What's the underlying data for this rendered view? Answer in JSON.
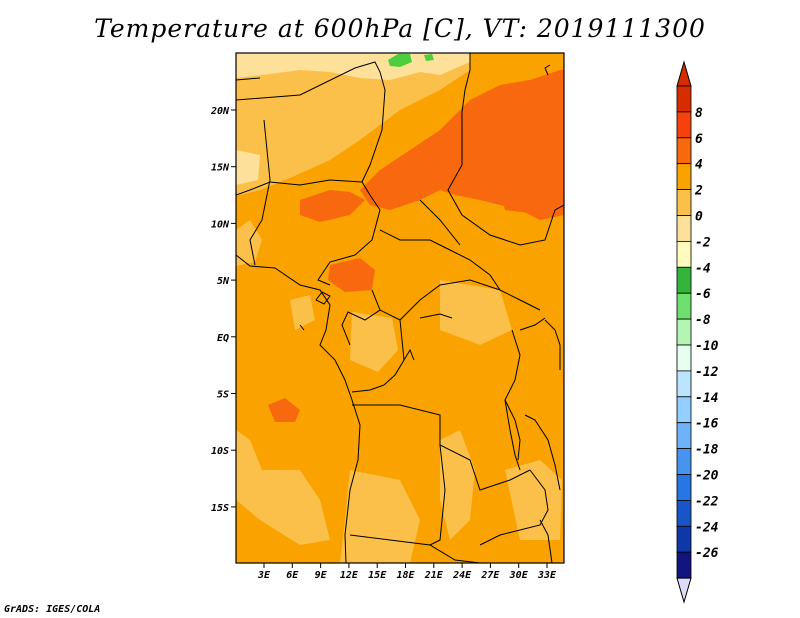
{
  "title": "Temperature at 600hPa [C], VT: 2019111300",
  "credit": "GrADS: IGES/COLA",
  "map": {
    "lat_labels": [
      "20N",
      "15N",
      "10N",
      "5N",
      "EQ",
      "5S",
      "10S",
      "15S"
    ],
    "lon_labels": [
      "3E",
      "6E",
      "9E",
      "12E",
      "15E",
      "18E",
      "21E",
      "24E",
      "27E",
      "30E",
      "33E"
    ],
    "fields": {
      "base": "#f9a200",
      "lighter_zones": "#fbc04a",
      "warm_band": "#f8690f",
      "cool_north": "#fde19a",
      "green_patch": "#4dce3e"
    }
  },
  "colorbar": {
    "labels": [
      "8",
      "6",
      "4",
      "2",
      "0",
      "-2",
      "-4",
      "-6",
      "-8",
      "-10",
      "-12",
      "-14",
      "-16",
      "-18",
      "-20",
      "-22",
      "-24",
      "-26"
    ],
    "colors": [
      "#d52d00",
      "#f5410e",
      "#f8690f",
      "#f9a200",
      "#fbc04a",
      "#fde19a",
      "#fffabe",
      "#34b43a",
      "#6fe06f",
      "#b4f5b4",
      "#e6fff0",
      "#bbe4ff",
      "#94ceff",
      "#6eb3fa",
      "#4794f0",
      "#2776e3",
      "#1856c8",
      "#0f37a8",
      "#111580"
    ],
    "top_arrow_color": "#d52d00",
    "bottom_arrow_color": "#dcdcf8"
  }
}
